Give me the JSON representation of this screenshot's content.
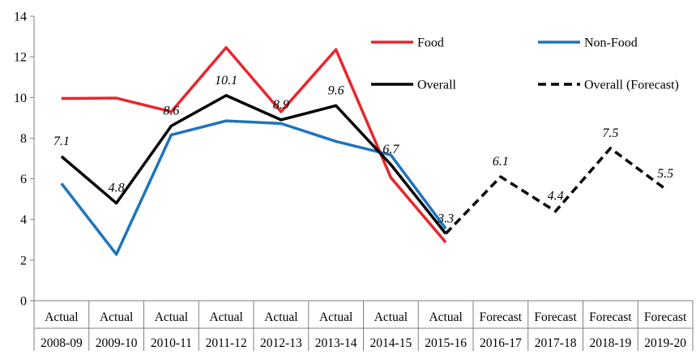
{
  "chart_data": {
    "type": "line",
    "title": "",
    "xlabel": "",
    "ylabel": "",
    "ylim": [
      0,
      14
    ],
    "yticks": [
      0,
      2,
      4,
      6,
      8,
      10,
      12,
      14
    ],
    "grid": false,
    "legend_position": "top-right",
    "categories": [
      {
        "top": "Actual",
        "bottom": "2008-09"
      },
      {
        "top": "Actual",
        "bottom": "2009-10"
      },
      {
        "top": "Actual",
        "bottom": "2010-11"
      },
      {
        "top": "Actual",
        "bottom": "2011-12"
      },
      {
        "top": "Actual",
        "bottom": "2012-13"
      },
      {
        "top": "Actual",
        "bottom": "2013-14"
      },
      {
        "top": "Actual",
        "bottom": "2014-15"
      },
      {
        "top": "Actual",
        "bottom": "2015-16"
      },
      {
        "top": "Forecast",
        "bottom": "2016-17"
      },
      {
        "top": "Forecast",
        "bottom": "2017-18"
      },
      {
        "top": "Forecast",
        "bottom": "2018-19"
      },
      {
        "top": "Forecast",
        "bottom": "2019-20"
      }
    ],
    "series": [
      {
        "name": "Food",
        "color": "#e8262d",
        "dashed": false,
        "values": [
          9.95,
          9.97,
          9.3,
          12.46,
          9.3,
          12.36,
          6.06,
          2.87,
          null,
          null,
          null,
          null
        ]
      },
      {
        "name": "Non-Food",
        "color": "#1f74bd",
        "dashed": false,
        "values": [
          5.77,
          2.28,
          8.16,
          8.85,
          8.72,
          7.84,
          7.17,
          3.55,
          null,
          null,
          null,
          null
        ]
      },
      {
        "name": "Overall",
        "color": "#000000",
        "dashed": false,
        "values": [
          7.1,
          4.8,
          8.6,
          10.1,
          8.9,
          9.6,
          6.7,
          3.3,
          null,
          null,
          null,
          null
        ]
      },
      {
        "name": "Overall (Forecast)",
        "color": "#000000",
        "dashed": true,
        "values": [
          null,
          null,
          null,
          null,
          null,
          null,
          null,
          3.3,
          6.1,
          4.4,
          7.5,
          5.5
        ]
      }
    ],
    "data_labels": [
      "7.1",
      "4.8",
      "8.6",
      "10.1",
      "8.9",
      "9.6",
      "6.7",
      "3.3",
      "6.1",
      "4.4",
      "7.5",
      "5.5"
    ],
    "data_label_values": [
      7.1,
      4.8,
      8.6,
      10.1,
      8.9,
      9.6,
      6.7,
      3.3,
      6.1,
      4.4,
      7.5,
      5.5
    ]
  }
}
